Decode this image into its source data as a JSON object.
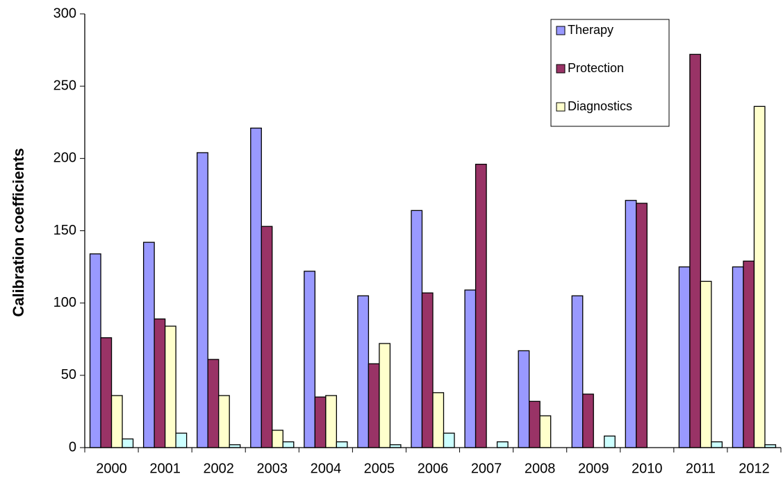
{
  "chart_data": {
    "type": "bar",
    "y_label": "Calibration coefficients",
    "categories": [
      "2000",
      "2001",
      "2002",
      "2003",
      "2004",
      "2005",
      "2006",
      "2007",
      "2008",
      "2009",
      "2010",
      "2011",
      "2012"
    ],
    "series": [
      {
        "name": "Therapy",
        "color": "#9999ff",
        "values": [
          134,
          142,
          204,
          221,
          122,
          105,
          164,
          109,
          67,
          105,
          171,
          125,
          125
        ]
      },
      {
        "name": "Protection",
        "color": "#993366",
        "values": [
          76,
          89,
          61,
          153,
          35,
          58,
          107,
          196,
          32,
          37,
          169,
          272,
          129
        ]
      },
      {
        "name": "Diagnostics",
        "color": "#ffffcc",
        "values": [
          36,
          84,
          36,
          12,
          36,
          72,
          38,
          null,
          22,
          null,
          null,
          115,
          236
        ]
      },
      {
        "color": "#ccffff",
        "values": [
          6,
          10,
          2,
          4,
          4,
          2,
          10,
          4,
          null,
          8,
          null,
          4,
          2
        ]
      }
    ],
    "ylim": [
      0,
      300
    ],
    "yticks": [
      0,
      50,
      100,
      150,
      200,
      250,
      300
    ],
    "grid": false,
    "legend": "upper right"
  }
}
